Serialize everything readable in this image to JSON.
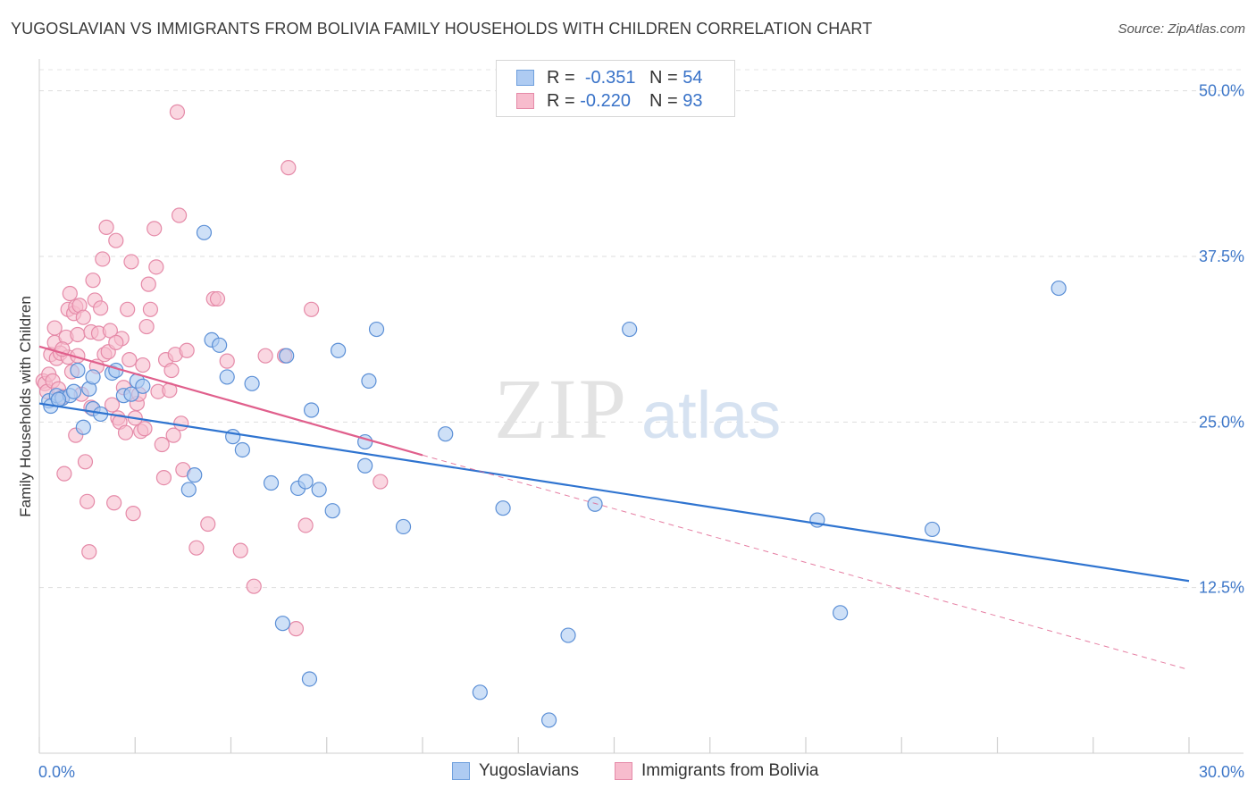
{
  "title": "YUGOSLAVIAN VS IMMIGRANTS FROM BOLIVIA FAMILY HOUSEHOLDS WITH CHILDREN CORRELATION CHART",
  "source": "Source: ZipAtlas.com",
  "watermark": {
    "zip": "ZIP",
    "atlas": "atlas"
  },
  "stats_legend": [
    {
      "r_label": "R =",
      "r_value": "-0.351",
      "n_label": "N =",
      "n_value": "54",
      "color": "#aecbf2",
      "stroke": "#6e9fdd"
    },
    {
      "r_label": "R =",
      "r_value": "-0.220",
      "n_label": "N =",
      "n_value": "93",
      "color": "#f7bccd",
      "stroke": "#e58aa8"
    }
  ],
  "chart_data": {
    "type": "scatter",
    "title": "YUGOSLAVIAN VS IMMIGRANTS FROM BOLIVIA FAMILY HOUSEHOLDS WITH CHILDREN CORRELATION CHART",
    "xlabel": "",
    "ylabel": "Family Households with Children",
    "xlim": [
      0,
      30
    ],
    "ylim": [
      0,
      52
    ],
    "x_tick_labels": [
      "0.0%",
      "30.0%"
    ],
    "y_ticks": [
      12.5,
      25.0,
      37.5,
      50.0
    ],
    "y_tick_labels": [
      "12.5%",
      "25.0%",
      "37.5%",
      "50.0%"
    ],
    "grid": true,
    "legend_position": "bottom",
    "series": [
      {
        "name": "Yugoslavians",
        "color": "#aecbf2",
        "stroke": "#5b8fd6",
        "trend_color": "#2f74d0",
        "trend": {
          "x0": 0.0,
          "y0": 26.4,
          "x1": 30.0,
          "y1": 13.0,
          "dashed_to": null
        },
        "points": [
          [
            0.25,
            26.6
          ],
          [
            0.3,
            26.2
          ],
          [
            0.45,
            27.0
          ],
          [
            0.6,
            26.8
          ],
          [
            0.8,
            27.0
          ],
          [
            0.9,
            27.3
          ],
          [
            1.0,
            28.9
          ],
          [
            1.15,
            24.6
          ],
          [
            1.3,
            27.5
          ],
          [
            1.4,
            26.0
          ],
          [
            1.4,
            28.4
          ],
          [
            1.6,
            25.6
          ],
          [
            1.9,
            28.7
          ],
          [
            2.0,
            28.9
          ],
          [
            2.2,
            27.0
          ],
          [
            2.4,
            27.1
          ],
          [
            2.55,
            28.1
          ],
          [
            2.7,
            27.7
          ],
          [
            3.9,
            19.9
          ],
          [
            4.05,
            21.0
          ],
          [
            4.3,
            39.3
          ],
          [
            4.5,
            31.2
          ],
          [
            4.7,
            30.8
          ],
          [
            4.9,
            28.4
          ],
          [
            5.05,
            23.9
          ],
          [
            5.3,
            22.9
          ],
          [
            5.55,
            27.9
          ],
          [
            6.05,
            20.4
          ],
          [
            6.35,
            9.8
          ],
          [
            6.45,
            30.0
          ],
          [
            6.75,
            20.0
          ],
          [
            6.95,
            20.5
          ],
          [
            7.05,
            5.6
          ],
          [
            7.1,
            25.9
          ],
          [
            7.3,
            19.9
          ],
          [
            7.65,
            18.3
          ],
          [
            7.8,
            30.4
          ],
          [
            8.5,
            21.7
          ],
          [
            8.5,
            23.5
          ],
          [
            8.6,
            28.1
          ],
          [
            8.8,
            32.0
          ],
          [
            9.5,
            17.1
          ],
          [
            10.6,
            24.1
          ],
          [
            11.5,
            4.6
          ],
          [
            12.1,
            18.5
          ],
          [
            13.3,
            2.5
          ],
          [
            13.8,
            8.9
          ],
          [
            14.5,
            18.8
          ],
          [
            15.4,
            32.0
          ],
          [
            20.3,
            17.6
          ],
          [
            20.9,
            10.6
          ],
          [
            23.3,
            16.9
          ],
          [
            26.6,
            35.1
          ],
          [
            0.5,
            26.7
          ]
        ]
      },
      {
        "name": "Immigrants from Bolivia",
        "color": "#f7bccd",
        "stroke": "#e58aa8",
        "trend_color": "#e05f8c",
        "trend": {
          "x0": 0.0,
          "y0": 30.7,
          "x1": 10.0,
          "y1": 22.5,
          "dashed_to": {
            "x": 30.0,
            "y": 6.3
          }
        },
        "points": [
          [
            0.1,
            28.1
          ],
          [
            0.15,
            27.9
          ],
          [
            0.2,
            27.3
          ],
          [
            0.25,
            28.6
          ],
          [
            0.3,
            30.1
          ],
          [
            0.35,
            28.1
          ],
          [
            0.4,
            31.0
          ],
          [
            0.4,
            32.1
          ],
          [
            0.45,
            29.8
          ],
          [
            0.5,
            27.5
          ],
          [
            0.55,
            30.2
          ],
          [
            0.6,
            26.9
          ],
          [
            0.65,
            21.1
          ],
          [
            0.7,
            31.4
          ],
          [
            0.75,
            29.9
          ],
          [
            0.75,
            33.5
          ],
          [
            0.8,
            34.7
          ],
          [
            0.85,
            28.8
          ],
          [
            0.9,
            33.2
          ],
          [
            0.95,
            24.0
          ],
          [
            0.95,
            33.7
          ],
          [
            1.0,
            31.6
          ],
          [
            1.05,
            33.8
          ],
          [
            1.1,
            27.1
          ],
          [
            1.15,
            32.9
          ],
          [
            1.2,
            22.0
          ],
          [
            1.25,
            19.0
          ],
          [
            1.3,
            15.2
          ],
          [
            1.35,
            26.1
          ],
          [
            1.35,
            31.8
          ],
          [
            1.4,
            35.7
          ],
          [
            1.45,
            34.2
          ],
          [
            1.5,
            29.2
          ],
          [
            1.55,
            31.7
          ],
          [
            1.6,
            33.6
          ],
          [
            1.65,
            37.3
          ],
          [
            1.7,
            30.1
          ],
          [
            1.75,
            39.7
          ],
          [
            1.8,
            30.3
          ],
          [
            1.85,
            31.9
          ],
          [
            1.9,
            26.3
          ],
          [
            1.95,
            18.9
          ],
          [
            2.0,
            38.7
          ],
          [
            2.05,
            25.3
          ],
          [
            2.1,
            25.0
          ],
          [
            2.15,
            31.3
          ],
          [
            2.2,
            27.6
          ],
          [
            2.25,
            24.2
          ],
          [
            2.3,
            33.5
          ],
          [
            2.35,
            29.7
          ],
          [
            2.4,
            37.1
          ],
          [
            2.45,
            18.1
          ],
          [
            2.5,
            25.3
          ],
          [
            2.55,
            26.4
          ],
          [
            2.6,
            27.1
          ],
          [
            2.65,
            24.3
          ],
          [
            2.7,
            29.3
          ],
          [
            2.75,
            24.5
          ],
          [
            2.8,
            32.2
          ],
          [
            2.85,
            35.4
          ],
          [
            2.9,
            33.5
          ],
          [
            3.0,
            39.6
          ],
          [
            3.05,
            36.7
          ],
          [
            3.1,
            27.3
          ],
          [
            3.2,
            23.3
          ],
          [
            3.25,
            20.8
          ],
          [
            3.3,
            29.7
          ],
          [
            3.4,
            27.4
          ],
          [
            3.45,
            28.9
          ],
          [
            3.5,
            24.0
          ],
          [
            3.55,
            30.1
          ],
          [
            3.6,
            48.4
          ],
          [
            3.65,
            40.6
          ],
          [
            3.7,
            24.9
          ],
          [
            3.75,
            21.4
          ],
          [
            3.85,
            30.4
          ],
          [
            4.1,
            15.5
          ],
          [
            4.4,
            17.3
          ],
          [
            4.55,
            34.3
          ],
          [
            4.65,
            34.3
          ],
          [
            4.9,
            29.6
          ],
          [
            5.25,
            15.3
          ],
          [
            5.6,
            12.6
          ],
          [
            5.9,
            30.0
          ],
          [
            6.4,
            30.0
          ],
          [
            6.5,
            44.2
          ],
          [
            6.7,
            9.4
          ],
          [
            6.95,
            17.2
          ],
          [
            7.1,
            33.5
          ],
          [
            8.9,
            20.5
          ],
          [
            1.0,
            30.0
          ],
          [
            0.6,
            30.5
          ],
          [
            2.0,
            31.0
          ]
        ]
      }
    ]
  }
}
